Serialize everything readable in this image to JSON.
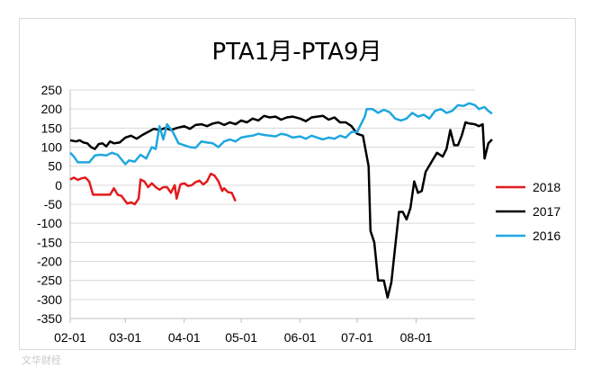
{
  "watermark": "文华财经",
  "chart_data": {
    "type": "line",
    "title": "PTA1月-PTA9月",
    "xlabel": "",
    "ylabel": "",
    "ylim": [
      -350,
      250
    ],
    "yticks": [
      250,
      200,
      150,
      100,
      50,
      0,
      -50,
      -100,
      -150,
      -200,
      -250,
      -300,
      -350
    ],
    "xdomain": [
      "2000-02-01",
      "2000-09-01"
    ],
    "xticks": [
      {
        "date": "2000-02-01",
        "label": "02-01"
      },
      {
        "date": "2000-03-01",
        "label": "03-01"
      },
      {
        "date": "2000-04-01",
        "label": "04-01"
      },
      {
        "date": "2000-05-01",
        "label": "05-01"
      },
      {
        "date": "2000-06-01",
        "label": "06-01"
      },
      {
        "date": "2000-07-01",
        "label": "07-01"
      },
      {
        "date": "2000-08-01",
        "label": "08-01"
      }
    ],
    "grid": true,
    "legend_position": "right",
    "series": [
      {
        "name": "2018",
        "color": "#e41a1c",
        "points": [
          [
            "02-01",
            15
          ],
          [
            "02-03",
            20
          ],
          [
            "02-05",
            14
          ],
          [
            "02-07",
            18
          ],
          [
            "02-09",
            20
          ],
          [
            "02-11",
            10
          ],
          [
            "02-13",
            -25
          ],
          [
            "02-16",
            -25
          ],
          [
            "02-19",
            -25
          ],
          [
            "02-22",
            -25
          ],
          [
            "02-24",
            -8
          ],
          [
            "02-26",
            -25
          ],
          [
            "02-28",
            -28
          ],
          [
            "03-02",
            -48
          ],
          [
            "03-04",
            -45
          ],
          [
            "03-06",
            -50
          ],
          [
            "03-08",
            -35
          ],
          [
            "03-09",
            15
          ],
          [
            "03-11",
            10
          ],
          [
            "03-13",
            -5
          ],
          [
            "03-15",
            5
          ],
          [
            "03-17",
            -5
          ],
          [
            "03-19",
            -12
          ],
          [
            "03-21",
            -5
          ],
          [
            "03-23",
            -5
          ],
          [
            "03-25",
            -20
          ],
          [
            "03-27",
            0
          ],
          [
            "03-28",
            -35
          ],
          [
            "03-30",
            2
          ],
          [
            "04-01",
            5
          ],
          [
            "04-03",
            -2
          ],
          [
            "04-05",
            0
          ],
          [
            "04-07",
            8
          ],
          [
            "04-09",
            12
          ],
          [
            "04-11",
            2
          ],
          [
            "04-13",
            10
          ],
          [
            "04-15",
            30
          ],
          [
            "04-17",
            25
          ],
          [
            "04-19",
            10
          ],
          [
            "04-21",
            -15
          ],
          [
            "04-22",
            -8
          ],
          [
            "04-24",
            -18
          ],
          [
            "04-26",
            -20
          ],
          [
            "04-28",
            -42
          ]
        ]
      },
      {
        "name": "2017",
        "color": "#000000",
        "points": [
          [
            "02-01",
            118
          ],
          [
            "02-04",
            115
          ],
          [
            "02-06",
            118
          ],
          [
            "02-08",
            112
          ],
          [
            "02-10",
            110
          ],
          [
            "02-12",
            100
          ],
          [
            "02-14",
            95
          ],
          [
            "02-16",
            108
          ],
          [
            "02-18",
            110
          ],
          [
            "02-20",
            102
          ],
          [
            "02-22",
            115
          ],
          [
            "02-24",
            110
          ],
          [
            "02-27",
            112
          ],
          [
            "03-01",
            125
          ],
          [
            "03-04",
            130
          ],
          [
            "03-07",
            122
          ],
          [
            "03-10",
            132
          ],
          [
            "03-13",
            140
          ],
          [
            "03-16",
            148
          ],
          [
            "03-19",
            145
          ],
          [
            "03-22",
            150
          ],
          [
            "03-25",
            145
          ],
          [
            "03-28",
            150
          ],
          [
            "04-01",
            155
          ],
          [
            "04-04",
            148
          ],
          [
            "04-07",
            158
          ],
          [
            "04-10",
            160
          ],
          [
            "04-13",
            155
          ],
          [
            "04-16",
            162
          ],
          [
            "04-19",
            165
          ],
          [
            "04-22",
            158
          ],
          [
            "04-25",
            165
          ],
          [
            "04-28",
            160
          ],
          [
            "05-01",
            170
          ],
          [
            "05-04",
            165
          ],
          [
            "05-07",
            175
          ],
          [
            "05-10",
            170
          ],
          [
            "05-13",
            182
          ],
          [
            "05-16",
            178
          ],
          [
            "05-19",
            180
          ],
          [
            "05-22",
            172
          ],
          [
            "05-25",
            178
          ],
          [
            "05-28",
            180
          ],
          [
            "06-01",
            175
          ],
          [
            "06-04",
            168
          ],
          [
            "06-07",
            178
          ],
          [
            "06-10",
            180
          ],
          [
            "06-13",
            182
          ],
          [
            "06-16",
            172
          ],
          [
            "06-19",
            178
          ],
          [
            "06-22",
            165
          ],
          [
            "06-25",
            165
          ],
          [
            "06-28",
            155
          ],
          [
            "07-01",
            135
          ],
          [
            "07-04",
            130
          ],
          [
            "07-07",
            50
          ],
          [
            "07-08",
            -120
          ],
          [
            "07-10",
            -150
          ],
          [
            "07-12",
            -250
          ],
          [
            "07-15",
            -250
          ],
          [
            "07-17",
            -295
          ],
          [
            "07-19",
            -255
          ],
          [
            "07-21",
            -160
          ],
          [
            "07-23",
            -70
          ],
          [
            "07-25",
            -70
          ],
          [
            "07-27",
            -90
          ],
          [
            "07-29",
            -60
          ],
          [
            "07-31",
            10
          ],
          [
            "08-02",
            -20
          ],
          [
            "08-04",
            -15
          ],
          [
            "08-06",
            35
          ],
          [
            "08-09",
            60
          ],
          [
            "08-12",
            85
          ],
          [
            "08-15",
            75
          ],
          [
            "08-17",
            95
          ],
          [
            "08-19",
            145
          ],
          [
            "08-21",
            105
          ],
          [
            "08-23",
            105
          ],
          [
            "08-25",
            130
          ],
          [
            "08-27",
            165
          ],
          [
            "08-29",
            162
          ],
          [
            "09-01",
            160
          ],
          [
            "09-03",
            155
          ],
          [
            "09-05",
            160
          ],
          [
            "09-06",
            70
          ],
          [
            "09-08",
            110
          ],
          [
            "09-10",
            120
          ]
        ]
      },
      {
        "name": "2016",
        "color": "#1fa7df",
        "points": [
          [
            "02-01",
            85
          ],
          [
            "02-03",
            75
          ],
          [
            "02-05",
            60
          ],
          [
            "02-08",
            60
          ],
          [
            "02-11",
            60
          ],
          [
            "02-14",
            78
          ],
          [
            "02-17",
            80
          ],
          [
            "02-20",
            78
          ],
          [
            "02-23",
            85
          ],
          [
            "02-26",
            80
          ],
          [
            "03-01",
            55
          ],
          [
            "03-03",
            65
          ],
          [
            "03-06",
            62
          ],
          [
            "03-09",
            80
          ],
          [
            "03-12",
            70
          ],
          [
            "03-15",
            100
          ],
          [
            "03-17",
            95
          ],
          [
            "03-19",
            155
          ],
          [
            "03-21",
            120
          ],
          [
            "03-23",
            160
          ],
          [
            "03-26",
            140
          ],
          [
            "03-29",
            110
          ],
          [
            "04-01",
            105
          ],
          [
            "04-04",
            100
          ],
          [
            "04-07",
            98
          ],
          [
            "04-10",
            115
          ],
          [
            "04-13",
            112
          ],
          [
            "04-16",
            110
          ],
          [
            "04-19",
            100
          ],
          [
            "04-22",
            115
          ],
          [
            "04-25",
            120
          ],
          [
            "04-28",
            115
          ],
          [
            "05-01",
            125
          ],
          [
            "05-04",
            128
          ],
          [
            "05-07",
            130
          ],
          [
            "05-10",
            135
          ],
          [
            "05-13",
            132
          ],
          [
            "05-16",
            130
          ],
          [
            "05-19",
            128
          ],
          [
            "05-22",
            135
          ],
          [
            "05-25",
            132
          ],
          [
            "05-28",
            125
          ],
          [
            "06-01",
            128
          ],
          [
            "06-04",
            122
          ],
          [
            "06-07",
            130
          ],
          [
            "06-10",
            125
          ],
          [
            "06-13",
            120
          ],
          [
            "06-16",
            125
          ],
          [
            "06-19",
            122
          ],
          [
            "06-22",
            130
          ],
          [
            "06-25",
            125
          ],
          [
            "06-28",
            140
          ],
          [
            "07-01",
            140
          ],
          [
            "07-03",
            160
          ],
          [
            "07-05",
            180
          ],
          [
            "07-06",
            200
          ],
          [
            "07-09",
            200
          ],
          [
            "07-12",
            190
          ],
          [
            "07-15",
            198
          ],
          [
            "07-18",
            192
          ],
          [
            "07-21",
            175
          ],
          [
            "07-24",
            170
          ],
          [
            "07-27",
            175
          ],
          [
            "07-30",
            190
          ],
          [
            "08-02",
            180
          ],
          [
            "08-05",
            185
          ],
          [
            "08-08",
            175
          ],
          [
            "08-11",
            195
          ],
          [
            "08-14",
            200
          ],
          [
            "08-17",
            190
          ],
          [
            "08-20",
            195
          ],
          [
            "08-23",
            210
          ],
          [
            "08-26",
            208
          ],
          [
            "08-29",
            215
          ],
          [
            "09-01",
            210
          ],
          [
            "09-03",
            200
          ],
          [
            "09-06",
            205
          ],
          [
            "09-08",
            195
          ],
          [
            "09-10",
            188
          ]
        ]
      }
    ]
  }
}
